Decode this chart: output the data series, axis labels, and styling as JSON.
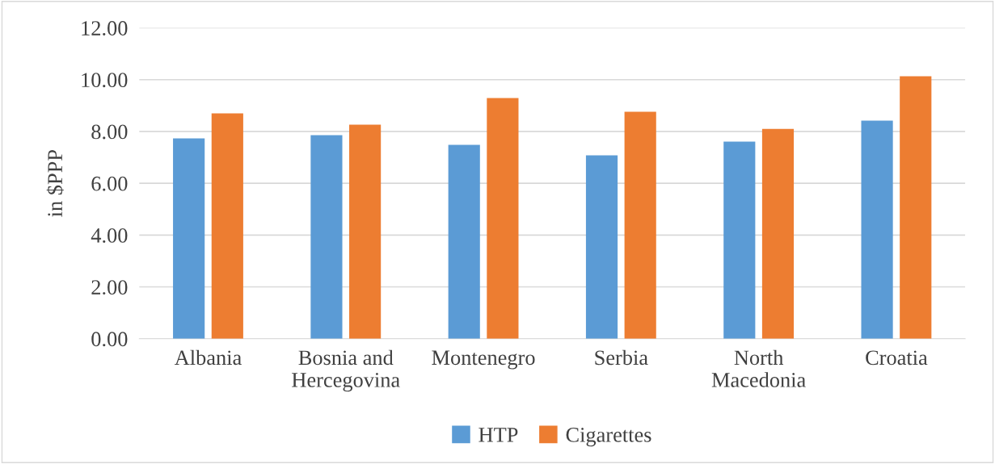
{
  "chart_data": {
    "type": "bar",
    "ylabel": "in $PPP",
    "categories": [
      "Albania",
      "Bosnia and\nHercegovina",
      "Montenegro",
      "Serbia",
      "North\nMacedonia",
      "Croatia"
    ],
    "series": [
      {
        "name": "HTP",
        "color": "#5b9bd5",
        "values": [
          7.73,
          7.86,
          7.48,
          7.08,
          7.61,
          8.42
        ]
      },
      {
        "name": "Cigarettes",
        "color": "#ed7d31",
        "values": [
          8.7,
          8.26,
          9.29,
          8.76,
          8.1,
          10.13
        ]
      }
    ],
    "ylim": [
      0,
      12
    ],
    "yticks": [
      {
        "value": 0,
        "label": "0.00"
      },
      {
        "value": 2,
        "label": "2.00"
      },
      {
        "value": 4,
        "label": "4.00"
      },
      {
        "value": 6,
        "label": "6.00"
      },
      {
        "value": 8,
        "label": "8.00"
      },
      {
        "value": 10,
        "label": "10.00"
      },
      {
        "value": 12,
        "label": "12.00"
      }
    ],
    "grid": "y",
    "legend": "bottom"
  }
}
